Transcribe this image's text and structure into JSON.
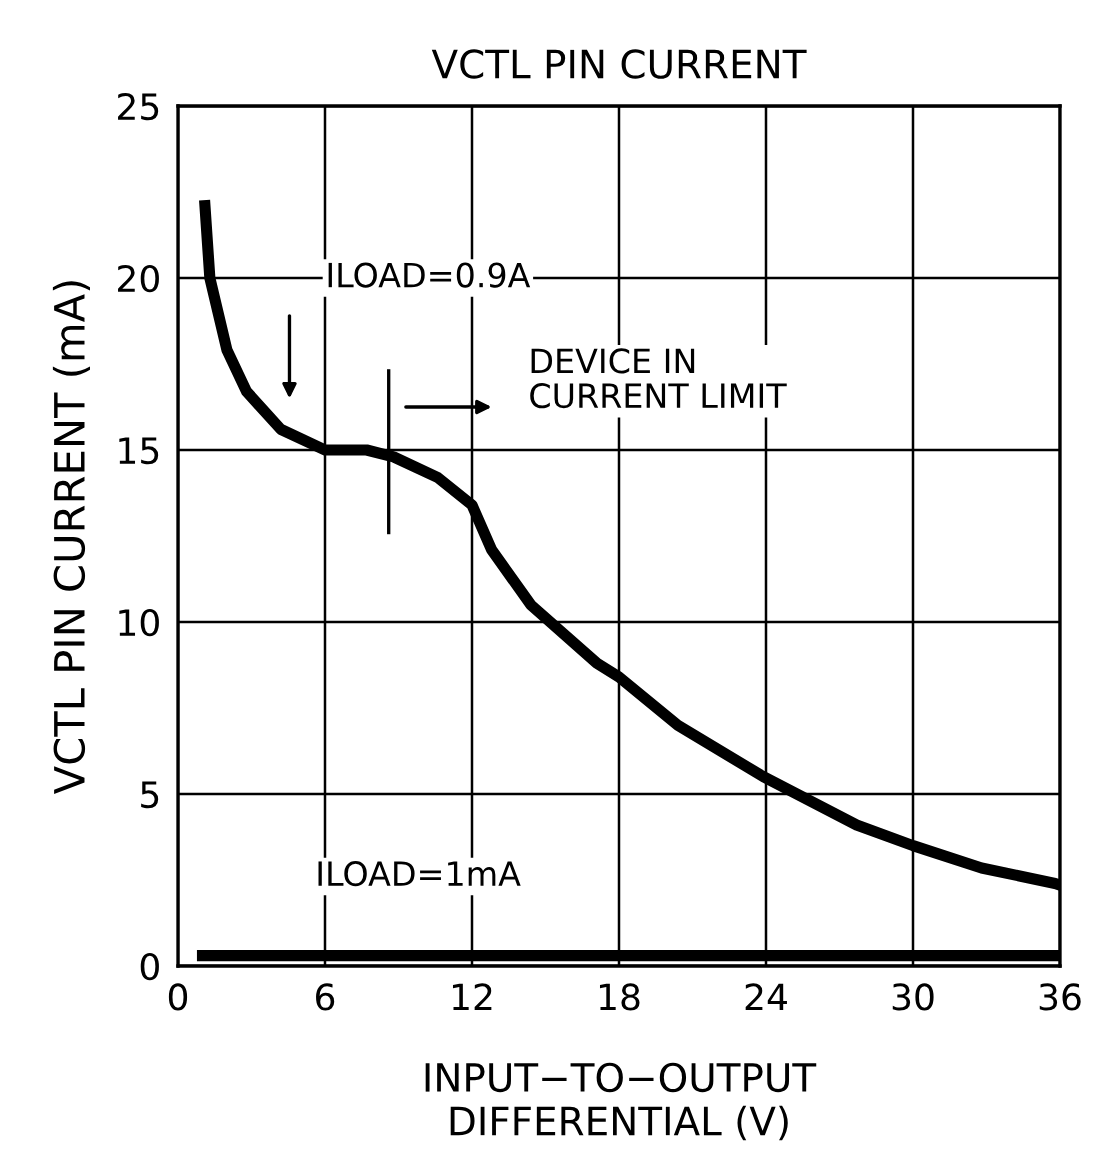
{
  "chart_data": {
    "type": "line",
    "title": "VCTL PIN CURRENT",
    "xlabel": "INPUT−TO−OUTPUT\nDIFFERENTIAL (V)",
    "ylabel": "VCTL PIN CURRENT (mA)",
    "xlim": [
      0,
      36
    ],
    "ylim": [
      0,
      25
    ],
    "xticks": [
      0,
      6,
      12,
      18,
      24,
      30,
      36
    ],
    "yticks": [
      0,
      5,
      10,
      15,
      20,
      25
    ],
    "grid": true,
    "legend": false,
    "series": [
      {
        "color": "#000000",
        "x": [
          1.1,
          1.3,
          2.0,
          2.8,
          4.2,
          6,
          7.7,
          8.8,
          10.6,
          12,
          12.8,
          14.4,
          17.1,
          18,
          20.4,
          23.9,
          27.7,
          30,
          32.8,
          35.8,
          36
        ],
        "values": [
          22.1,
          20,
          17.9,
          16.7,
          15.6,
          15,
          15,
          14.8,
          14.2,
          13.4,
          12.1,
          10.5,
          8.8,
          8.4,
          7.0,
          5.5,
          4.1,
          3.5,
          2.85,
          2.4,
          2.35
        ]
      },
      {
        "color": "#000000",
        "x": [
          1,
          36
        ],
        "values": [
          0.3,
          0.3
        ]
      }
    ],
    "annotations": [
      "ILOAD=0.9A",
      "DEVICE IN\nCURRENT LIMIT",
      "ILOAD=1mA"
    ]
  }
}
